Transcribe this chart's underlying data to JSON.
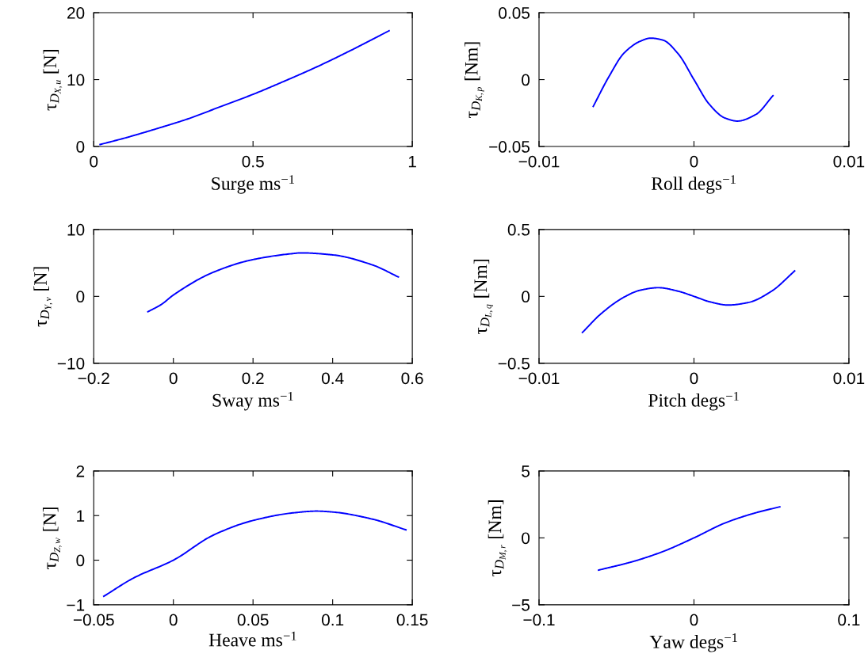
{
  "chart_data": [
    {
      "type": "line",
      "xlabel": "Surge ms$^{−1}$",
      "ylabel": "τ$_{D}$$_{X,u}$ [N]",
      "xlim": [
        0,
        1
      ],
      "xticks": [
        0,
        0.5,
        1
      ],
      "ylim": [
        0,
        20
      ],
      "yticks": [
        0,
        10,
        20
      ],
      "grid": false,
      "series": [
        {
          "color": "#0000ff",
          "x": [
            0.02,
            0.1,
            0.2,
            0.3,
            0.4,
            0.5,
            0.6,
            0.7,
            0.8,
            0.927
          ],
          "values": [
            0.3,
            1.3,
            2.7,
            4.2,
            6.0,
            7.8,
            9.8,
            11.9,
            14.2,
            17.3
          ]
        }
      ]
    },
    {
      "type": "line",
      "xlabel": "Roll degs$^{−1}$",
      "ylabel": "τ$_{D}$$_{K,p}$ [Nm]",
      "xlim": [
        -0.01,
        0.01
      ],
      "xticks": [
        -0.01,
        0,
        0.01
      ],
      "ylim": [
        -0.05,
        0.05
      ],
      "yticks": [
        -0.05,
        0,
        0.05
      ],
      "grid": false,
      "series": [
        {
          "color": "#0000ff",
          "x": [
            -0.0065,
            -0.0055,
            -0.0045,
            -0.0035,
            -0.0028,
            -0.002,
            -0.001,
            0,
            0.001,
            0.002,
            0.0028,
            0.004,
            0.0051
          ],
          "values": [
            -0.02,
            0.002,
            0.02,
            0.0285,
            0.031,
            0.0295,
            0.019,
            0.0,
            -0.0186,
            -0.0287,
            -0.031,
            -0.026,
            -0.012
          ]
        }
      ]
    },
    {
      "type": "line",
      "xlabel": "Sway ms$^{−1}$",
      "ylabel": "τ$_{D}$$_{Y,v}$ [N]",
      "xlim": [
        -0.2,
        0.6
      ],
      "xticks": [
        -0.2,
        0,
        0.2,
        0.4,
        0.6
      ],
      "ylim": [
        -10,
        10
      ],
      "yticks": [
        -10,
        0,
        10
      ],
      "grid": false,
      "series": [
        {
          "color": "#0000ff",
          "x": [
            -0.064,
            -0.03,
            0,
            0.1,
            0.2,
            0.3,
            0.32,
            0.4,
            0.5,
            0.565
          ],
          "values": [
            -2.3,
            -1.2,
            0.2,
            3.6,
            5.5,
            6.4,
            6.5,
            6.2,
            4.7,
            2.9
          ]
        }
      ]
    },
    {
      "type": "line",
      "xlabel": "Pitch degs$^{−1}$",
      "ylabel": "τ$_{D}$$_{L,q}$ [Nm]",
      "xlim": [
        -0.01,
        0.01
      ],
      "xticks": [
        -0.01,
        0,
        0.01
      ],
      "ylim": [
        -0.5,
        0.5
      ],
      "yticks": [
        -0.5,
        0,
        0.5
      ],
      "grid": false,
      "series": [
        {
          "color": "#0000ff",
          "x": [
            -0.0072,
            -0.006,
            -0.0045,
            -0.0035,
            -0.0023,
            -0.001,
            0,
            0.001,
            0.0022,
            0.0035,
            0.005,
            0.0065
          ],
          "values": [
            -0.27,
            -0.13,
            -0.005,
            0.045,
            0.065,
            0.038,
            0.0,
            -0.04,
            -0.065,
            -0.046,
            0.038,
            0.19
          ]
        }
      ]
    },
    {
      "type": "line",
      "xlabel": "Heave ms$^{−1}$",
      "ylabel": "τ$_{D}$$_{Z,w}$ [N]",
      "xlim": [
        -0.05,
        0.15
      ],
      "xticks": [
        -0.05,
        0,
        0.05,
        0.1,
        0.15
      ],
      "ylim": [
        -1,
        2
      ],
      "yticks": [
        -1,
        0,
        1,
        2
      ],
      "grid": false,
      "series": [
        {
          "color": "#0000ff",
          "x": [
            -0.0437,
            -0.025,
            0,
            0.025,
            0.05,
            0.075,
            0.09,
            0.1,
            0.125,
            0.146
          ],
          "values": [
            -0.81,
            -0.4,
            0.0,
            0.56,
            0.89,
            1.06,
            1.1,
            1.08,
            0.92,
            0.68
          ]
        }
      ]
    },
    {
      "type": "line",
      "xlabel": "Yaw degs$^{−1}$",
      "ylabel": "τ$_{D}$$_{M,r}$ [Nm]",
      "xlim": [
        -0.1,
        0.1
      ],
      "xticks": [
        -0.1,
        0,
        0.1
      ],
      "ylim": [
        -5,
        5
      ],
      "yticks": [
        -5,
        0,
        5
      ],
      "grid": false,
      "series": [
        {
          "color": "#0000ff",
          "x": [
            -0.0616,
            -0.04,
            -0.02,
            0,
            0.02,
            0.04,
            0.0554
          ],
          "values": [
            -2.41,
            -1.79,
            -1.02,
            0.0,
            1.11,
            1.88,
            2.32
          ]
        }
      ]
    }
  ]
}
